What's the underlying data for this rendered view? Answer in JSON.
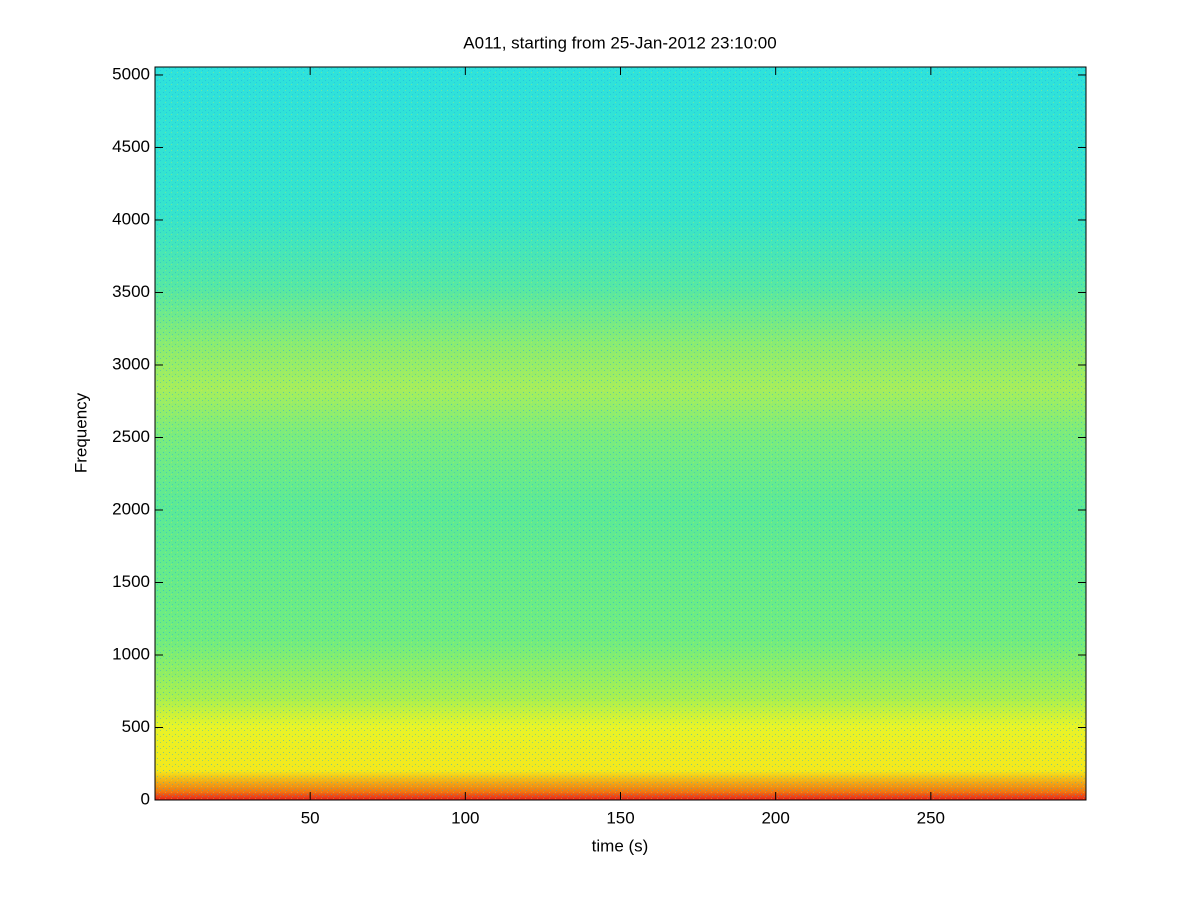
{
  "chart_data": {
    "type": "spectrogram",
    "title": "A011, starting from 25-Jan-2012 23:10:00",
    "x_label": "time (s)",
    "y_label": "Frequency",
    "colormap": "jet",
    "xlim": [
      0,
      300
    ],
    "xticks": [
      50,
      100,
      150,
      200,
      250
    ],
    "ylim": [
      0,
      5055
    ],
    "yticks": [
      0,
      500,
      1000,
      1500,
      2000,
      2500,
      3000,
      3500,
      4000,
      4500,
      5000
    ]
  }
}
